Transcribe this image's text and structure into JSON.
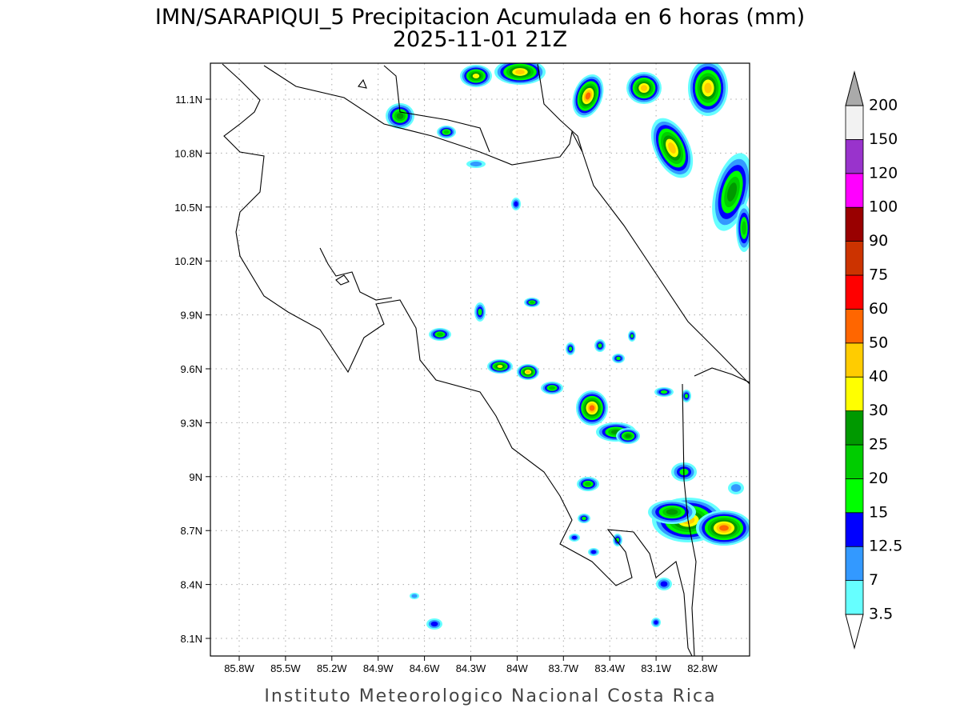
{
  "title": [
    "IMN/SARAPIQUI_5 Precipitacion Acumulada en 6 horas (mm)",
    "2025-11-01 21Z"
  ],
  "map": {
    "xticks": [
      "85.8W",
      "85.5W",
      "85.2W",
      "84.9W",
      "84.6W",
      "84.3W",
      "84W",
      "83.7W",
      "83.4W",
      "83.1W",
      "82.8W"
    ],
    "yticks": [
      "11.1N",
      "10.8N",
      "10.5N",
      "10.2N",
      "9.9N",
      "9.6N",
      "9.3N",
      "9N",
      "8.7N",
      "8.4N",
      "8.1N"
    ]
  },
  "colorbar": {
    "levels": [
      3.5,
      7,
      12.5,
      15,
      20,
      25,
      30,
      40,
      50,
      60,
      75,
      90,
      100,
      120,
      150,
      200
    ],
    "colors": [
      "#66ffff",
      "#3399ff",
      "#0000ff",
      "#00ff00",
      "#00cc00",
      "#009900",
      "#ffff00",
      "#ffcc00",
      "#ff6600",
      "#ff0000",
      "#cc3300",
      "#990000",
      "#ff00ff",
      "#9933cc",
      "#f2f2f2"
    ],
    "under": "#ffffff",
    "over": "#aaaaaa"
  },
  "footer": "Instituto Meteorologico Nacional Costa Rica"
}
